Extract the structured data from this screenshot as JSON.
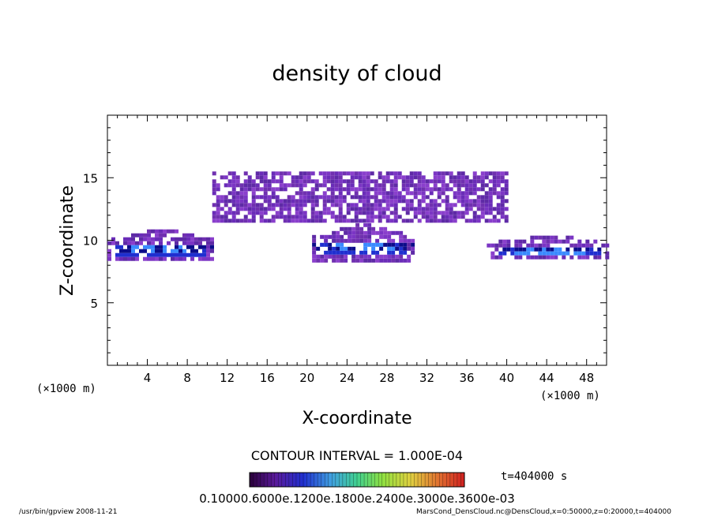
{
  "chart_data": {
    "type": "heatmap",
    "title": "density of cloud",
    "xlabel": "X-coordinate",
    "ylabel": "Z-coordinate",
    "x_unit_left": "(×1000 m)",
    "x_unit_right": "(×1000 m)",
    "xlim": [
      0,
      50
    ],
    "ylim": [
      0,
      20
    ],
    "x_ticks": [
      "4",
      "8",
      "12",
      "16",
      "20",
      "24",
      "28",
      "32",
      "36",
      "40",
      "44",
      "48"
    ],
    "y_ticks": [
      "5",
      "10",
      "15"
    ],
    "contour_interval": "CONTOUR INTERVAL = 1.000E-04",
    "time": "t=404000 s",
    "colorbar_labels": "0.10000.6000e.1200e.1800e.2400e.3000e.3600e-03",
    "footer_left": "/usr/bin/gpview  2008-11-21",
    "footer_right": "MarsCond_DensCloud.nc@DensCloud,x=0:50000,z=0:20000,t=404000",
    "cloud_regions": [
      {
        "x": [
          0,
          10.5
        ],
        "z": [
          8.5,
          11.5
        ],
        "level": "high"
      },
      {
        "x": [
          10.5,
          40
        ],
        "z": [
          11.5,
          15.5
        ],
        "level": "low"
      },
      {
        "x": [
          20.5,
          30.5
        ],
        "z": [
          8.5,
          12
        ],
        "level": "high"
      },
      {
        "x": [
          38,
          50
        ],
        "z": [
          8.5,
          11
        ],
        "level": "high"
      }
    ]
  }
}
